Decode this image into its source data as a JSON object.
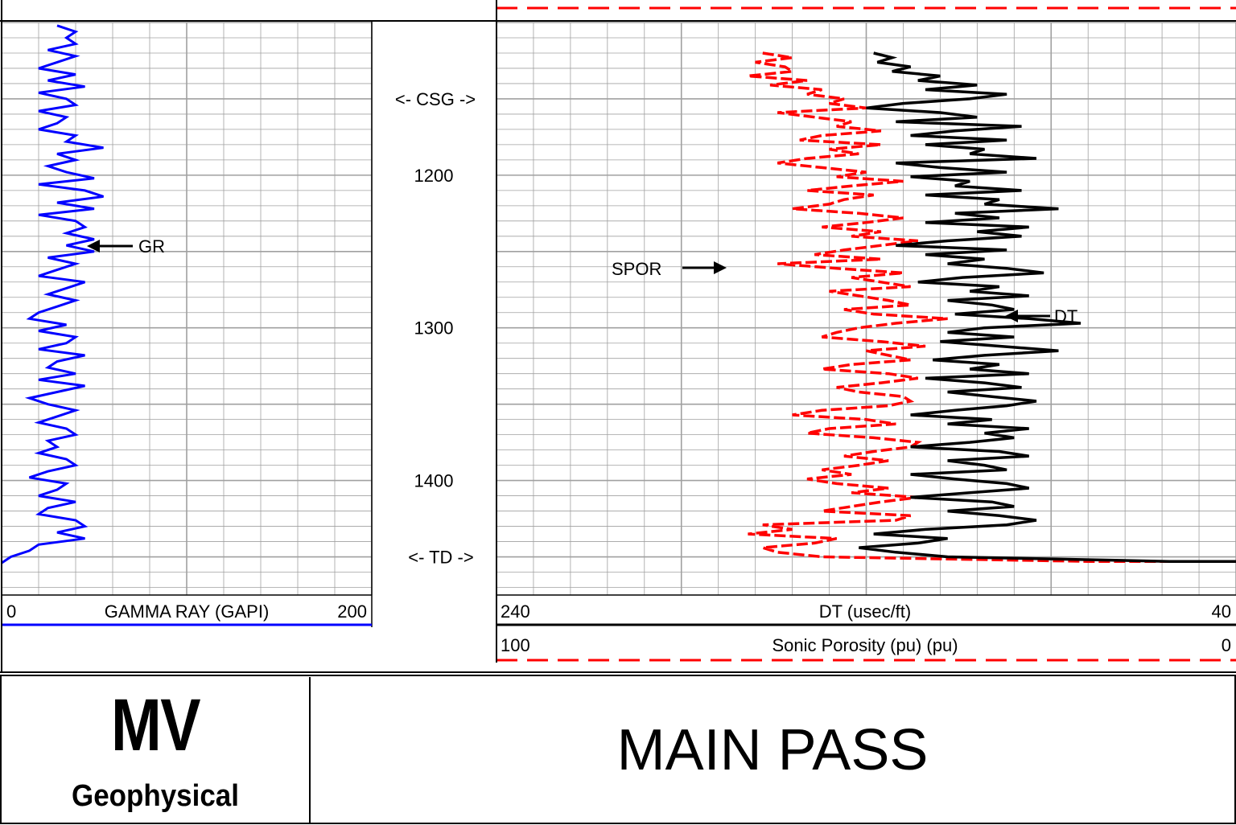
{
  "colors": {
    "gr_curve": "#0000ff",
    "dt_curve": "#000000",
    "spor_curve": "#ff0000",
    "grid": "#a0a0a0"
  },
  "depth_track": {
    "labels": [
      {
        "depth": 1200,
        "text": "1200"
      },
      {
        "depth": 1300,
        "text": "1300"
      },
      {
        "depth": 1400,
        "text": "1400"
      }
    ],
    "markers": [
      {
        "depth": 1150,
        "text": "<- CSG ->"
      },
      {
        "depth": 1450,
        "text": "<- TD ->"
      }
    ]
  },
  "scales": {
    "gr": {
      "left": "0",
      "label": "GAMMA RAY (GAPI)",
      "right": "200"
    },
    "dt": {
      "left": "240",
      "label": "DT (usec/ft)",
      "right": "40"
    },
    "spor": {
      "left": "100",
      "label": "Sonic Porosity (pu) (pu)",
      "right": "0"
    }
  },
  "curve_labels": {
    "gr": "GR",
    "spor": "SPOR",
    "dt": "DT"
  },
  "footer": {
    "logo_big": "MV",
    "logo_small": "Geophysical",
    "title": "MAIN PASS"
  },
  "chart_data": {
    "type": "line",
    "depth_range": [
      1100,
      1475
    ],
    "series": [
      {
        "name": "GR",
        "unit": "GAPI",
        "scale": [
          0,
          200
        ],
        "depth": [
          1102,
          1106,
          1110,
          1114,
          1118,
          1122,
          1126,
          1130,
          1134,
          1138,
          1142,
          1146,
          1150,
          1154,
          1158,
          1162,
          1166,
          1170,
          1174,
          1178,
          1182,
          1186,
          1190,
          1194,
          1198,
          1202,
          1206,
          1210,
          1214,
          1218,
          1222,
          1226,
          1230,
          1234,
          1238,
          1242,
          1246,
          1250,
          1254,
          1258,
          1262,
          1266,
          1270,
          1274,
          1278,
          1282,
          1286,
          1290,
          1294,
          1298,
          1302,
          1306,
          1310,
          1314,
          1318,
          1322,
          1326,
          1330,
          1334,
          1338,
          1342,
          1346,
          1350,
          1354,
          1358,
          1362,
          1366,
          1370,
          1374,
          1378,
          1382,
          1386,
          1390,
          1394,
          1398,
          1402,
          1406,
          1410,
          1414,
          1418,
          1422,
          1426,
          1430,
          1434,
          1438,
          1442,
          1446,
          1450,
          1454
        ],
        "values": [
          30,
          40,
          35,
          40,
          25,
          40,
          30,
          20,
          40,
          25,
          45,
          20,
          35,
          40,
          20,
          35,
          30,
          20,
          40,
          35,
          55,
          30,
          40,
          25,
          35,
          50,
          20,
          45,
          55,
          30,
          50,
          20,
          40,
          45,
          35,
          50,
          35,
          50,
          25,
          40,
          30,
          20,
          45,
          35,
          25,
          40,
          30,
          20,
          15,
          35,
          20,
          40,
          35,
          20,
          45,
          30,
          25,
          40,
          20,
          45,
          30,
          15,
          25,
          40,
          30,
          20,
          35,
          40,
          25,
          30,
          20,
          35,
          40,
          25,
          15,
          35,
          30,
          20,
          40,
          25,
          20,
          40,
          45,
          30,
          45,
          20,
          15,
          5,
          0
        ]
      },
      {
        "name": "DT",
        "unit": "usec/ft",
        "scale": [
          240,
          40
        ],
        "depth": [
          1120,
          1123,
          1126,
          1129,
          1132,
          1135,
          1138,
          1141,
          1144,
          1147,
          1150,
          1153,
          1156,
          1159,
          1162,
          1165,
          1168,
          1171,
          1174,
          1177,
          1180,
          1183,
          1186,
          1189,
          1192,
          1195,
          1198,
          1201,
          1204,
          1207,
          1210,
          1213,
          1216,
          1219,
          1222,
          1225,
          1228,
          1231,
          1234,
          1237,
          1240,
          1243,
          1246,
          1249,
          1252,
          1255,
          1258,
          1261,
          1264,
          1267,
          1270,
          1273,
          1276,
          1279,
          1282,
          1285,
          1288,
          1291,
          1294,
          1297,
          1300,
          1303,
          1306,
          1309,
          1312,
          1315,
          1318,
          1321,
          1324,
          1327,
          1330,
          1333,
          1336,
          1339,
          1342,
          1345,
          1348,
          1351,
          1354,
          1357,
          1360,
          1363,
          1366,
          1369,
          1372,
          1375,
          1378,
          1381,
          1384,
          1387,
          1390,
          1393,
          1396,
          1399,
          1402,
          1405,
          1408,
          1411,
          1414,
          1417,
          1420,
          1423,
          1426,
          1429,
          1432,
          1435,
          1438,
          1441,
          1444,
          1447,
          1450,
          1453
        ],
        "values": [
          138,
          133,
          137,
          128,
          133,
          120,
          126,
          110,
          124,
          102,
          112,
          130,
          140,
          120,
          110,
          132,
          98,
          116,
          128,
          102,
          124,
          108,
          112,
          94,
          132,
          120,
          102,
          128,
          112,
          116,
          98,
          124,
          104,
          108,
          88,
          116,
          104,
          124,
          96,
          110,
          98,
          118,
          132,
          102,
          124,
          108,
          118,
          102,
          92,
          114,
          126,
          104,
          112,
          96,
          118,
          106,
          100,
          116,
          96,
          82,
          108,
          118,
          100,
          120,
          104,
          88,
          108,
          122,
          104,
          112,
          96,
          124,
          108,
          98,
          118,
          106,
          94,
          102,
          116,
          128,
          106,
          118,
          96,
          108,
          100,
          112,
          128,
          104,
          96,
          118,
          108,
          102,
          128,
          116,
          102,
          96,
          112,
          128,
          106,
          100,
          118,
          104,
          94,
          102,
          124,
          138,
          118,
          126,
          142,
          132,
          118,
          58
        ]
      },
      {
        "name": "SPOR",
        "unit": "pu",
        "scale": [
          100,
          0
        ],
        "depth": [
          1120,
          1123,
          1126,
          1129,
          1132,
          1135,
          1138,
          1141,
          1144,
          1147,
          1150,
          1153,
          1156,
          1159,
          1162,
          1165,
          1168,
          1171,
          1174,
          1177,
          1180,
          1183,
          1186,
          1189,
          1192,
          1195,
          1198,
          1201,
          1204,
          1207,
          1210,
          1213,
          1216,
          1219,
          1222,
          1225,
          1228,
          1231,
          1234,
          1237,
          1240,
          1243,
          1246,
          1249,
          1252,
          1255,
          1258,
          1261,
          1264,
          1267,
          1270,
          1273,
          1276,
          1279,
          1282,
          1285,
          1288,
          1291,
          1294,
          1297,
          1300,
          1303,
          1306,
          1309,
          1312,
          1315,
          1318,
          1321,
          1324,
          1327,
          1330,
          1333,
          1336,
          1339,
          1342,
          1345,
          1348,
          1351,
          1354,
          1357,
          1360,
          1363,
          1366,
          1369,
          1372,
          1375,
          1378,
          1381,
          1384,
          1387,
          1390,
          1393,
          1396,
          1399,
          1402,
          1405,
          1408,
          1411,
          1414,
          1417,
          1420,
          1423,
          1426,
          1429,
          1432,
          1435,
          1438,
          1441,
          1444,
          1447,
          1450,
          1453
        ],
        "values": [
          64,
          60,
          65,
          61,
          60,
          66,
          58,
          63,
          56,
          58,
          53,
          55,
          50,
          62,
          57,
          52,
          54,
          48,
          56,
          59,
          48,
          55,
          51,
          58,
          62,
          56,
          50,
          54,
          45,
          52,
          58,
          49,
          53,
          55,
          60,
          51,
          45,
          50,
          56,
          48,
          52,
          43,
          48,
          53,
          57,
          48,
          62,
          54,
          45,
          52,
          48,
          44,
          55,
          51,
          47,
          44,
          53,
          49,
          39,
          46,
          51,
          54,
          56,
          48,
          42,
          50,
          47,
          44,
          52,
          56,
          47,
          43,
          48,
          54,
          51,
          45,
          44,
          47,
          56,
          60,
          50,
          46,
          55,
          58,
          49,
          43,
          44,
          49,
          53,
          47,
          51,
          56,
          52,
          58,
          54,
          47,
          52,
          43,
          48,
          52,
          56,
          44,
          46,
          64,
          60,
          66,
          54,
          57,
          64,
          62,
          56,
          20
        ]
      }
    ]
  }
}
